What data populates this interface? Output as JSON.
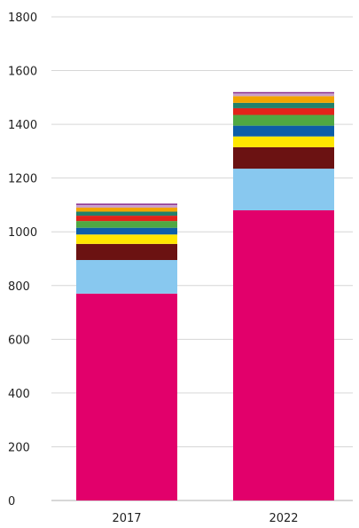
{
  "chart_data": {
    "type": "bar",
    "stacked": true,
    "title": "",
    "xlabel": "",
    "ylabel": "",
    "categories": [
      "2017",
      "2022"
    ],
    "ylim": [
      0,
      1800
    ],
    "yticks": [
      0,
      200,
      400,
      600,
      800,
      1000,
      1200,
      1400,
      1600,
      1800
    ],
    "grid": true,
    "legend": "none",
    "series": [
      {
        "color": "#e2006b",
        "values": [
          770,
          1080
        ]
      },
      {
        "color": "#88c8ef",
        "values": [
          125,
          155
        ]
      },
      {
        "color": "#6b1212",
        "values": [
          60,
          80
        ]
      },
      {
        "color": "#ffe600",
        "values": [
          35,
          40
        ]
      },
      {
        "color": "#0d5ea8",
        "values": [
          25,
          40
        ]
      },
      {
        "color": "#4fa843",
        "values": [
          25,
          40
        ]
      },
      {
        "color": "#e2231a",
        "values": [
          20,
          25
        ]
      },
      {
        "color": "#23806a",
        "values": [
          15,
          20
        ]
      },
      {
        "color": "#f2a400",
        "values": [
          15,
          25
        ]
      },
      {
        "color": "#c9a0cc",
        "values": [
          10,
          10
        ]
      },
      {
        "color": "#8a2d8c",
        "values": [
          5,
          5
        ]
      }
    ]
  }
}
